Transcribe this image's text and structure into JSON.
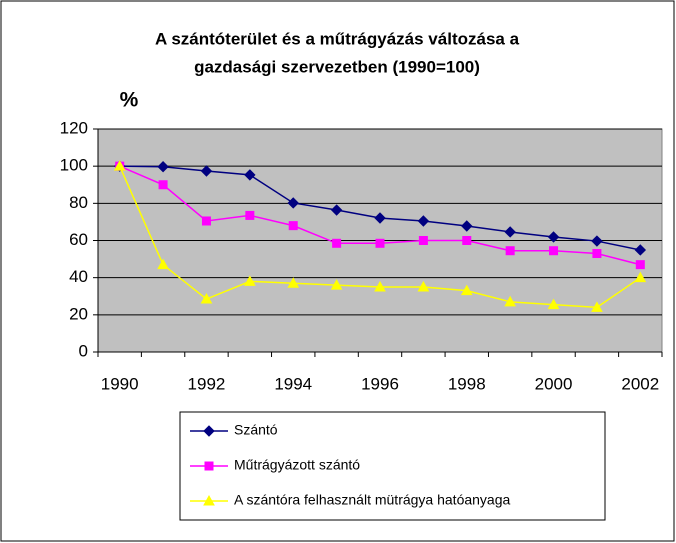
{
  "chart_data": {
    "type": "line",
    "title": [
      "A szántóterület és a műtrágyázás változása a",
      "gazdasági szervezetben (1990=100)"
    ],
    "ylabel": "%",
    "categories": [
      "1990",
      null,
      "1992",
      null,
      "1994",
      null,
      "1996",
      null,
      "1998",
      null,
      "2000",
      null,
      "2002"
    ],
    "series": [
      {
        "name": "Szántó",
        "color": "#000080",
        "marker": "diamond",
        "values": [
          100,
          99.7,
          97.4,
          95.3,
          80.2,
          76.4,
          72.1,
          70.5,
          67.8,
          64.6,
          61.9,
          59.7,
          54.9
        ]
      },
      {
        "name": "Műtrágyázott szántó",
        "color": "#ff00ff",
        "marker": "square",
        "values": [
          100,
          90,
          70.5,
          73.5,
          68,
          58.5,
          58.5,
          60,
          60,
          54.5,
          54.5,
          53,
          47
        ]
      },
      {
        "name": "A szántóra felhasznált mütrágya hatóanyaga",
        "color": "#ffff00",
        "marker": "triangle",
        "values": [
          100,
          47,
          28.5,
          38,
          37,
          36,
          35,
          35,
          33,
          27,
          25.5,
          24,
          40
        ]
      }
    ],
    "ylim": [
      0,
      120
    ],
    "yticks": [
      0,
      20,
      40,
      60,
      80,
      100,
      120
    ],
    "grid": true,
    "legend": "bottom"
  }
}
